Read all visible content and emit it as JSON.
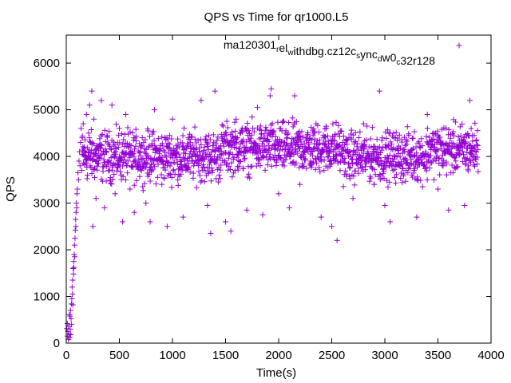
{
  "chart_data": {
    "type": "scatter",
    "title": "QPS vs Time for qr1000.L5",
    "xlabel": "Time(s)",
    "ylabel": "QPS",
    "xlim": [
      0,
      4000
    ],
    "ylim": [
      0,
      6600
    ],
    "x_ticks": [
      "0",
      "500",
      "1000",
      "1500",
      "2000",
      "2500",
      "3000",
      "3500",
      "4000"
    ],
    "y_ticks": [
      "0",
      "1000",
      "2000",
      "3000",
      "4000",
      "5000",
      "6000"
    ],
    "grid": false,
    "legend_position": "top-right",
    "marker": "plus",
    "series": [
      {
        "name": "ma120301_rel_withdbg.cz12c_sync_dw0_c32r128",
        "legend_parts": [
          {
            "text": "ma120301",
            "sub": false
          },
          {
            "text": "r",
            "sub": true
          },
          {
            "text": "el",
            "sub": false
          },
          {
            "text": "w",
            "sub": true
          },
          {
            "text": "ithdbg.cz12c",
            "sub": false
          },
          {
            "text": "s",
            "sub": true
          },
          {
            "text": "ync",
            "sub": false
          },
          {
            "text": "d",
            "sub": true
          },
          {
            "text": "w0",
            "sub": false
          },
          {
            "text": "c",
            "sub": true
          },
          {
            "text": "32r128",
            "sub": false
          }
        ],
        "color": "#9400d3",
        "points": [
          [
            5,
            310
          ],
          [
            10,
            420
          ],
          [
            12,
            150
          ],
          [
            15,
            250
          ],
          [
            20,
            80
          ],
          [
            22,
            360
          ],
          [
            25,
            200
          ],
          [
            30,
            610
          ],
          [
            32,
            120
          ],
          [
            35,
            580
          ],
          [
            38,
            300
          ],
          [
            40,
            700
          ],
          [
            42,
            180
          ],
          [
            45,
            520
          ],
          [
            48,
            840
          ],
          [
            50,
            400
          ],
          [
            52,
            950
          ],
          [
            55,
            1200
          ],
          [
            58,
            1050
          ],
          [
            60,
            1350
          ],
          [
            62,
            820
          ],
          [
            65,
            1600
          ],
          [
            68,
            1480
          ],
          [
            70,
            1750
          ],
          [
            72,
            1620
          ],
          [
            75,
            1900
          ],
          [
            78,
            2100
          ],
          [
            80,
            1850
          ],
          [
            82,
            2250
          ],
          [
            85,
            2420
          ],
          [
            88,
            2650
          ],
          [
            90,
            2500
          ],
          [
            92,
            2800
          ],
          [
            95,
            3000
          ],
          [
            98,
            2900
          ],
          [
            100,
            3200
          ],
          [
            105,
            3300
          ],
          [
            110,
            3650
          ],
          [
            115,
            3500
          ],
          [
            120,
            3900
          ],
          [
            125,
            4100
          ],
          [
            130,
            3800
          ],
          [
            135,
            4300
          ],
          [
            140,
            4600
          ],
          [
            145,
            3700
          ],
          [
            150,
            4400
          ],
          [
            160,
            4700
          ],
          [
            170,
            4200
          ],
          [
            180,
            4000
          ],
          [
            190,
            4900
          ],
          [
            200,
            3600
          ],
          [
            210,
            4500
          ],
          [
            220,
            5100
          ],
          [
            230,
            4300
          ],
          [
            240,
            5400
          ],
          [
            250,
            2500
          ],
          [
            260,
            4800
          ],
          [
            280,
            3100
          ],
          [
            300,
            4000
          ],
          [
            330,
            5200
          ],
          [
            360,
            2900
          ],
          [
            400,
            3700
          ],
          [
            430,
            5100
          ],
          [
            460,
            3200
          ],
          [
            500,
            4600
          ],
          [
            530,
            2600
          ],
          [
            560,
            4900
          ],
          [
            600,
            3300
          ],
          [
            640,
            2800
          ],
          [
            700,
            4200
          ],
          [
            750,
            3000
          ],
          [
            790,
            2600
          ],
          [
            830,
            5000
          ],
          [
            900,
            3400
          ],
          [
            950,
            2500
          ],
          [
            1000,
            4800
          ],
          [
            1050,
            3500
          ],
          [
            1100,
            2700
          ],
          [
            1150,
            4400
          ],
          [
            1200,
            3800
          ],
          [
            1270,
            5200
          ],
          [
            1330,
            2950
          ],
          [
            1360,
            2350
          ],
          [
            1400,
            5400
          ],
          [
            1500,
            2600
          ],
          [
            1550,
            2400
          ],
          [
            1600,
            4800
          ],
          [
            1700,
            2850
          ],
          [
            1800,
            5050
          ],
          [
            1850,
            2750
          ],
          [
            1920,
            5300
          ],
          [
            1930,
            5450
          ],
          [
            2000,
            3200
          ],
          [
            2100,
            2900
          ],
          [
            2150,
            5300
          ],
          [
            2200,
            3400
          ],
          [
            2300,
            3900
          ],
          [
            2400,
            2700
          ],
          [
            2450,
            4600
          ],
          [
            2500,
            2500
          ],
          [
            2550,
            2200
          ],
          [
            2600,
            4300
          ],
          [
            2700,
            3100
          ],
          [
            2800,
            4700
          ],
          [
            2900,
            3400
          ],
          [
            2950,
            5400
          ],
          [
            3000,
            2950
          ],
          [
            3050,
            2600
          ],
          [
            3100,
            4400
          ],
          [
            3200,
            3700
          ],
          [
            3300,
            2700
          ],
          [
            3400,
            4900
          ],
          [
            3500,
            3300
          ],
          [
            3600,
            2850
          ],
          [
            3700,
            4200
          ],
          [
            3750,
            2950
          ],
          [
            3800,
            5200
          ],
          [
            3850,
            4000
          ]
        ]
      }
    ],
    "noise_region": {
      "x_start": 150,
      "x_end": 3880,
      "y_center": 4000,
      "y_spread": 700
    }
  }
}
